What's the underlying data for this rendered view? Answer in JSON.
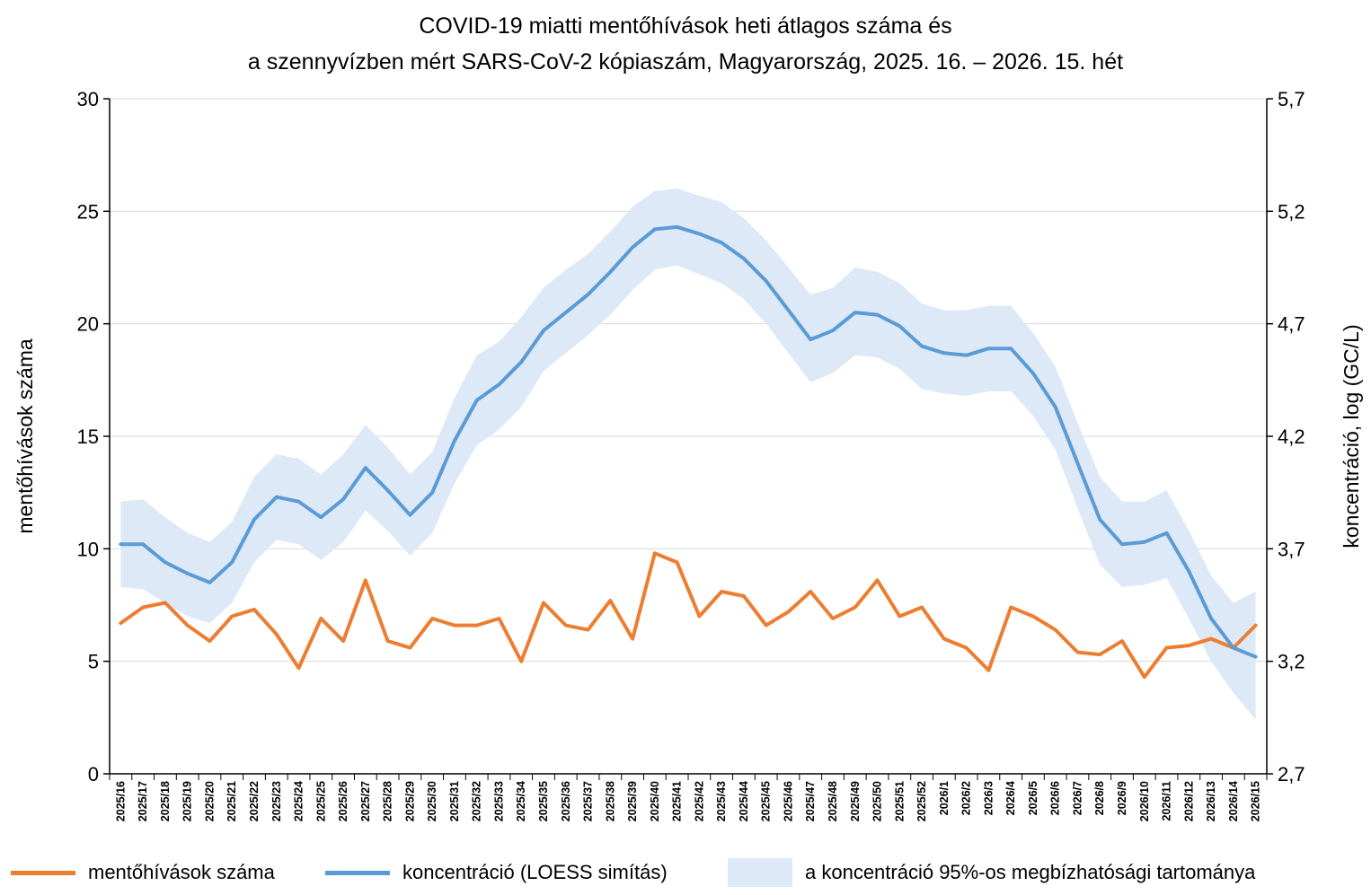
{
  "chart_data": {
    "type": "line",
    "title": "COVID-19 miatti mentőhívások heti átlagos száma és",
    "subtitle": "a szennyvízben mért SARS-CoV-2 kópiaszám, Magyarország, 2025. 16. – 2026. 15. hét",
    "ylabel": "mentőhívások száma",
    "y2label": "koncentráció, log (GC/L)",
    "ylim": [
      0,
      30
    ],
    "y2lim": [
      2.7,
      5.7
    ],
    "yticks": [
      "0",
      "5",
      "10",
      "15",
      "20",
      "25",
      "30"
    ],
    "y2ticks": [
      "2,7",
      "3,2",
      "3,7",
      "4,2",
      "4,7",
      "5,2",
      "5,7"
    ],
    "grid": true,
    "legend_position": "bottom",
    "categories": [
      "2025/16",
      "2025/17",
      "2025/18",
      "2025/19",
      "2025/20",
      "2025/21",
      "2025/22",
      "2025/23",
      "2025/24",
      "2025/25",
      "2025/26",
      "2025/27",
      "2025/28",
      "2025/29",
      "2025/30",
      "2025/31",
      "2025/32",
      "2025/33",
      "2025/34",
      "2025/35",
      "2025/36",
      "2025/37",
      "2025/38",
      "2025/39",
      "2025/40",
      "2025/41",
      "2025/42",
      "2025/43",
      "2025/44",
      "2025/45",
      "2025/46",
      "2025/47",
      "2025/48",
      "2025/49",
      "2025/50",
      "2025/51",
      "2025/52",
      "2026/1",
      "2026/2",
      "2026/3",
      "2026/4",
      "2026/5",
      "2026/6",
      "2026/7",
      "2026/8",
      "2026/9",
      "2026/10",
      "2026/11",
      "2026/12",
      "2026/13",
      "2026/14",
      "2026/15"
    ],
    "series": [
      {
        "name": "mentőhívások száma",
        "axis": "left",
        "color": "#ed7d31",
        "values": [
          6.7,
          7.4,
          7.6,
          6.6,
          5.9,
          7.0,
          7.3,
          6.2,
          4.7,
          6.9,
          5.9,
          8.6,
          5.9,
          5.6,
          6.9,
          6.6,
          6.6,
          6.9,
          5.0,
          7.6,
          6.6,
          6.4,
          7.7,
          6.0,
          9.8,
          9.4,
          7.0,
          8.1,
          7.9,
          6.6,
          7.2,
          8.1,
          6.9,
          7.4,
          8.6,
          7.0,
          7.4,
          6.0,
          5.6,
          4.6,
          7.4,
          7.0,
          6.4,
          5.4,
          5.3,
          5.9,
          4.3,
          5.6,
          5.7,
          6.0,
          5.6,
          6.6
        ]
      },
      {
        "name": "koncentráció (LOESS simítás)",
        "axis": "right",
        "color": "#5b9bd5",
        "values": [
          3.72,
          3.72,
          3.64,
          3.59,
          3.55,
          3.64,
          3.83,
          3.93,
          3.91,
          3.84,
          3.92,
          4.06,
          3.96,
          3.85,
          3.95,
          4.18,
          4.36,
          4.43,
          4.53,
          4.67,
          4.75,
          4.83,
          4.93,
          5.04,
          5.12,
          5.13,
          5.1,
          5.06,
          4.99,
          4.89,
          4.76,
          4.63,
          4.67,
          4.75,
          4.74,
          4.69,
          4.6,
          4.57,
          4.56,
          4.59,
          4.59,
          4.48,
          4.33,
          4.08,
          3.83,
          3.72,
          3.73,
          3.77,
          3.6,
          3.39,
          3.26,
          3.22
        ]
      }
    ],
    "band": {
      "name": "a koncentráció 95%-os megbízhatósági tartománya",
      "axis": "right",
      "color": "#dde9f7",
      "lower": [
        3.53,
        3.52,
        3.46,
        3.4,
        3.37,
        3.46,
        3.64,
        3.74,
        3.72,
        3.65,
        3.73,
        3.87,
        3.78,
        3.67,
        3.77,
        3.99,
        4.16,
        4.23,
        4.33,
        4.49,
        4.57,
        4.65,
        4.74,
        4.85,
        4.94,
        4.96,
        4.92,
        4.88,
        4.81,
        4.7,
        4.57,
        4.44,
        4.48,
        4.56,
        4.55,
        4.5,
        4.41,
        4.39,
        4.38,
        4.4,
        4.4,
        4.29,
        4.14,
        3.88,
        3.63,
        3.53,
        3.54,
        3.57,
        3.39,
        3.2,
        3.06,
        2.94
      ],
      "upper": [
        3.91,
        3.92,
        3.84,
        3.77,
        3.73,
        3.82,
        4.02,
        4.12,
        4.1,
        4.03,
        4.12,
        4.25,
        4.15,
        4.03,
        4.13,
        4.37,
        4.56,
        4.62,
        4.73,
        4.86,
        4.94,
        5.01,
        5.11,
        5.22,
        5.29,
        5.3,
        5.27,
        5.24,
        5.17,
        5.07,
        4.95,
        4.83,
        4.86,
        4.95,
        4.93,
        4.88,
        4.79,
        4.76,
        4.76,
        4.78,
        4.78,
        4.66,
        4.51,
        4.26,
        4.02,
        3.91,
        3.91,
        3.96,
        3.78,
        3.58,
        3.46,
        3.51
      ]
    }
  }
}
